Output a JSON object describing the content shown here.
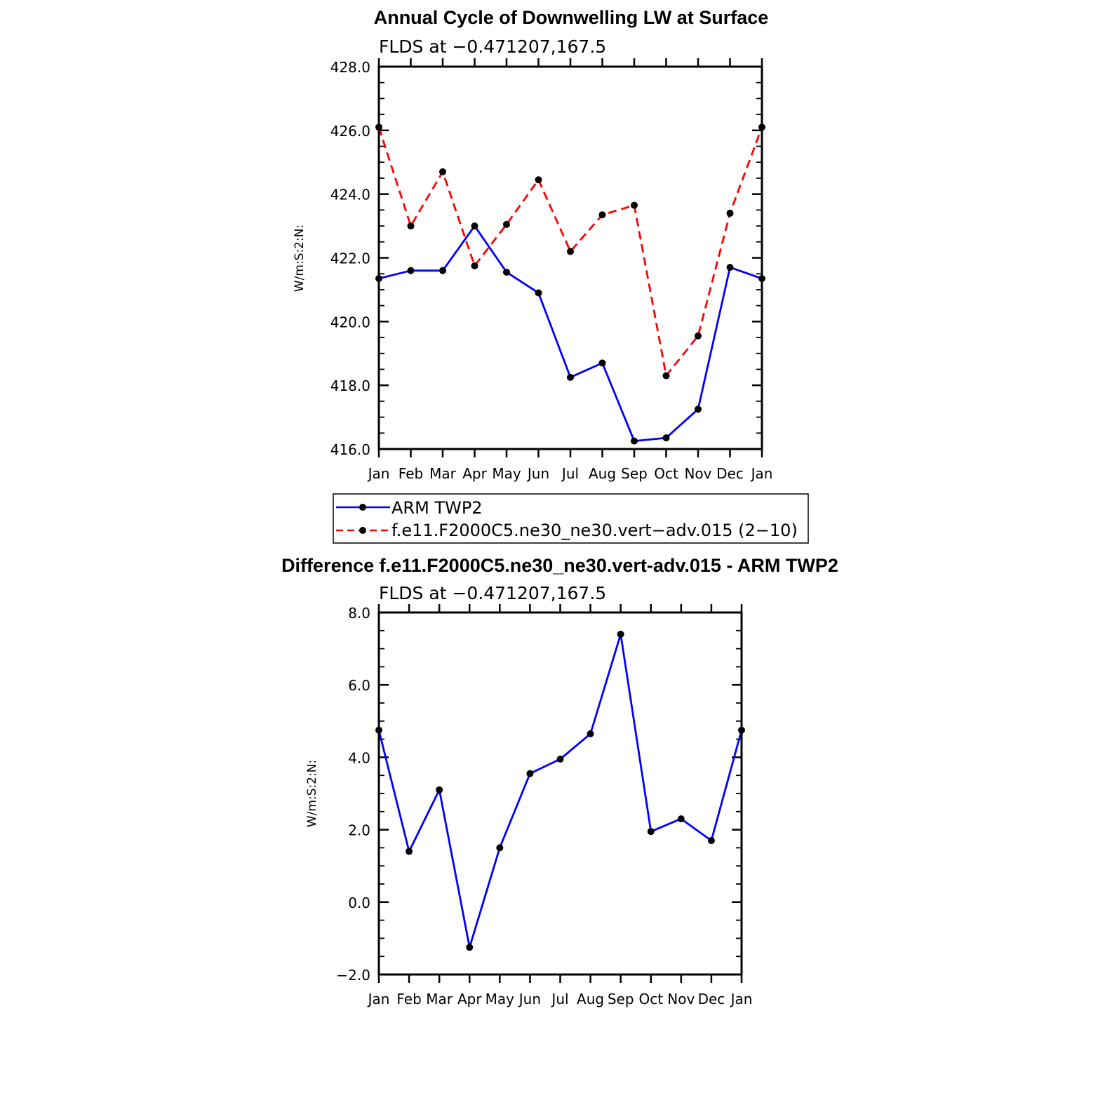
{
  "chart_data": [
    {
      "type": "line",
      "title": "Annual Cycle of Downwelling LW at Surface",
      "subtitle": "FLDS at −0.471207,167.5",
      "ylabel": "W/m:S:2:N:",
      "xlabel": "",
      "categories": [
        "Jan",
        "Feb",
        "Mar",
        "Apr",
        "May",
        "Jun",
        "Jul",
        "Aug",
        "Sep",
        "Oct",
        "Nov",
        "Dec",
        "Jan"
      ],
      "ylim": [
        416.0,
        428.0
      ],
      "yticks": [
        "416.0",
        "418.0",
        "420.0",
        "422.0",
        "424.0",
        "426.0",
        "428.0"
      ],
      "series": [
        {
          "name": "ARM TWP2",
          "color": "#0000ff",
          "dash": "solid",
          "values": [
            421.35,
            421.6,
            421.6,
            423.0,
            421.55,
            420.9,
            418.25,
            418.7,
            416.25,
            416.35,
            417.25,
            421.7,
            421.35
          ]
        },
        {
          "name": "f.e11.F2000C5.ne30_ne30.vert−adv.015 (2−10)",
          "color": "#ff0000",
          "dash": "dashed",
          "values": [
            426.1,
            423.0,
            424.7,
            421.75,
            423.05,
            424.45,
            422.2,
            423.35,
            423.65,
            418.3,
            419.55,
            423.4,
            426.1
          ]
        }
      ],
      "legend": {
        "position": "below",
        "entries": [
          "ARM TWP2",
          "f.e11.F2000C5.ne30_ne30.vert−adv.015 (2−10)"
        ]
      }
    },
    {
      "type": "line",
      "title": "Difference f.e11.F2000C5.ne30_ne30.vert-adv.015 - ARM TWP2",
      "subtitle": "FLDS at −0.471207,167.5",
      "ylabel": "W/m:S:2:N:",
      "xlabel": "",
      "categories": [
        "Jan",
        "Feb",
        "Mar",
        "Apr",
        "May",
        "Jun",
        "Jul",
        "Aug",
        "Sep",
        "Oct",
        "Nov",
        "Dec",
        "Jan"
      ],
      "ylim": [
        -2.0,
        8.0
      ],
      "yticks": [
        "−2.0",
        "0.0",
        "2.0",
        "4.0",
        "6.0",
        "8.0"
      ],
      "series": [
        {
          "name": "Difference",
          "color": "#0000ff",
          "dash": "solid",
          "values": [
            4.75,
            1.4,
            3.1,
            -1.25,
            1.5,
            3.55,
            3.95,
            4.65,
            7.4,
            1.95,
            2.3,
            1.7,
            4.75
          ]
        }
      ]
    }
  ]
}
